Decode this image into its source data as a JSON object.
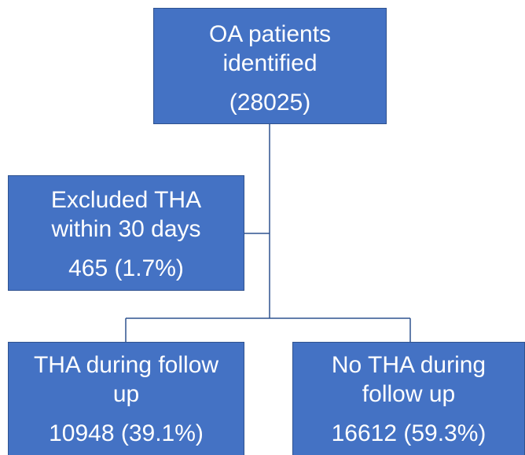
{
  "nodes": [
    {
      "lines": [
        "OA patients",
        "identified"
      ],
      "count": "(28025)"
    },
    {
      "lines": [
        "Excluded THA",
        "within 30 days"
      ],
      "count": "465 (1.7%)"
    },
    {
      "lines": [
        "THA during follow",
        "up"
      ],
      "count": "10948 (39.1%)"
    },
    {
      "lines": [
        "No THA during",
        "follow up"
      ],
      "count": "16612 (59.3%)"
    }
  ]
}
